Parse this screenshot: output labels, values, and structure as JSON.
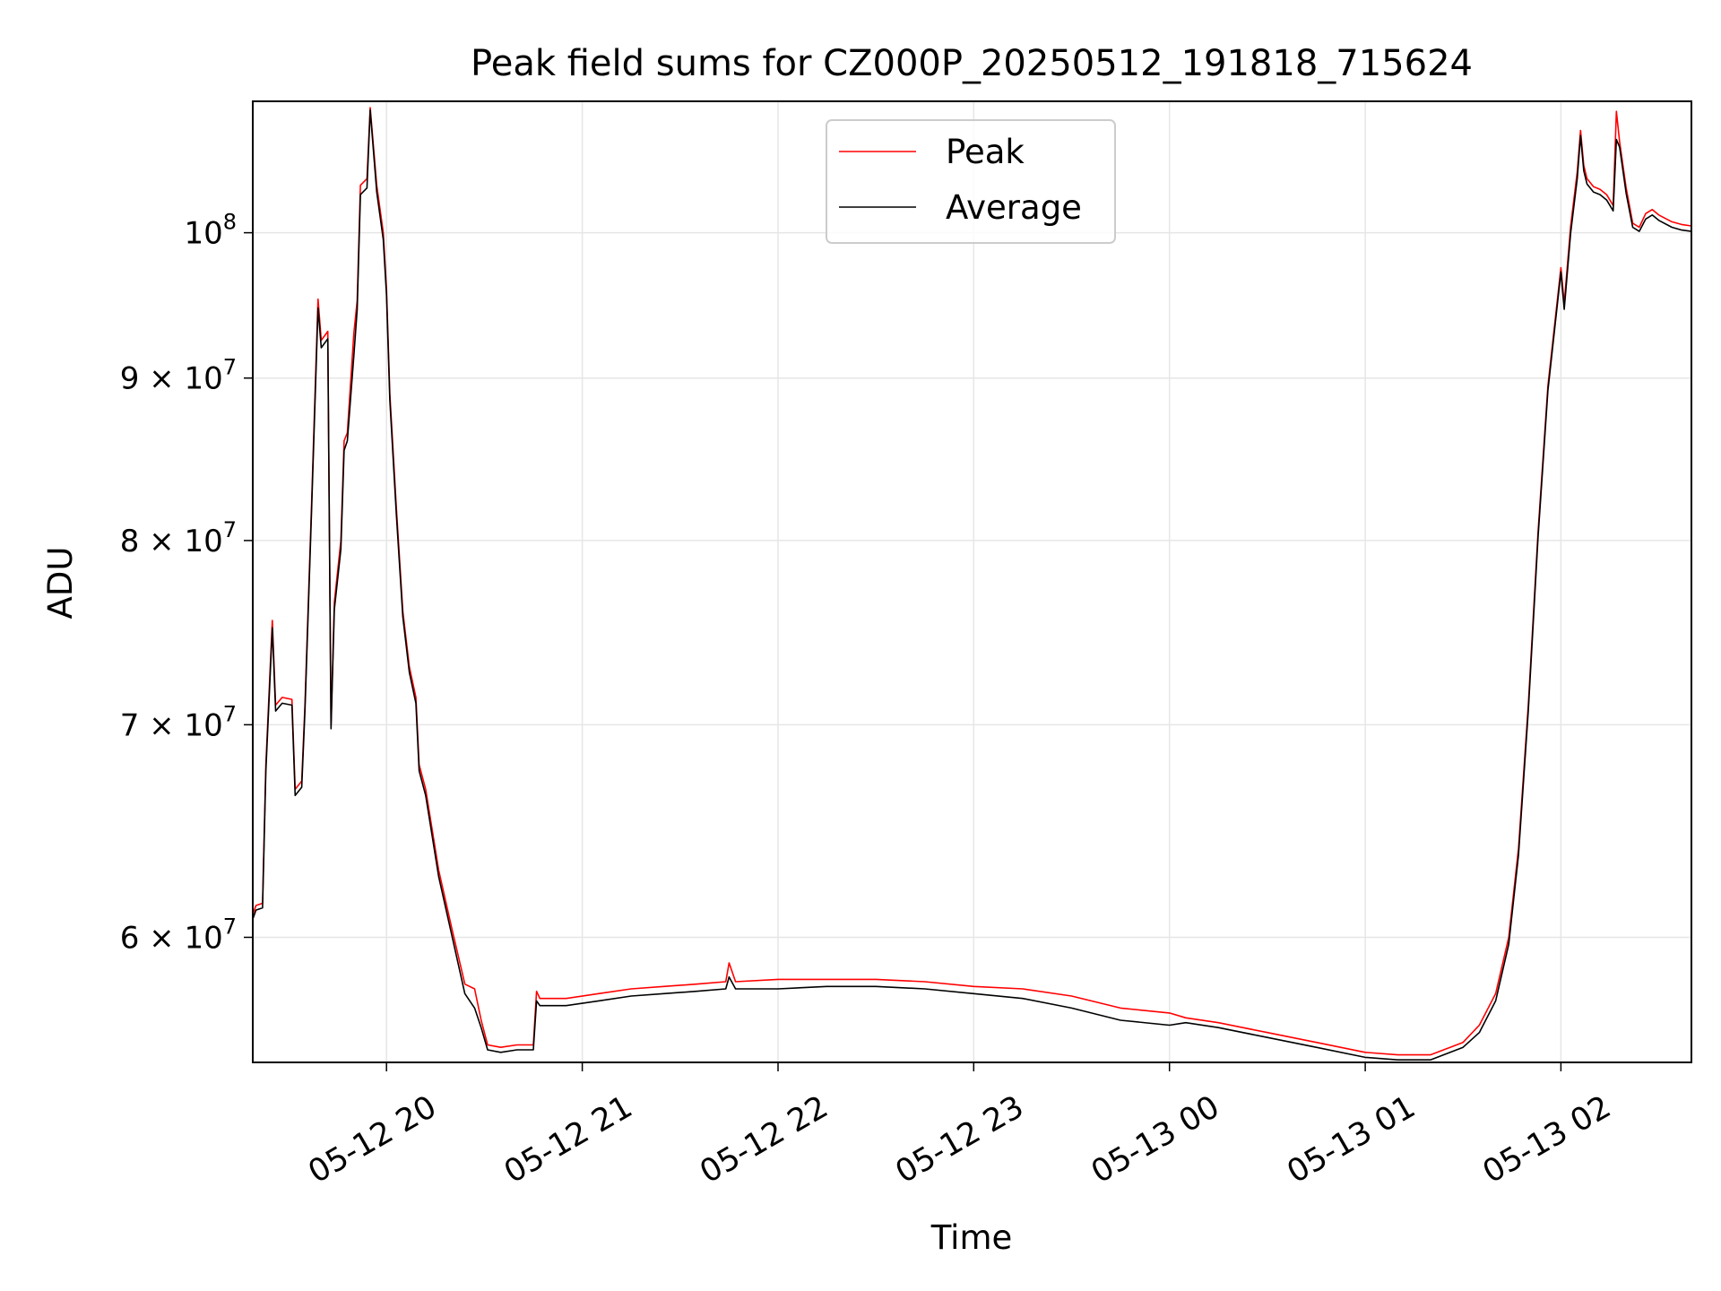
{
  "chart_data": {
    "type": "line",
    "title": "Peak field sums for CZ000P_20250512_191818_715624",
    "xlabel": "Time",
    "ylabel": "ADU",
    "x_start": "2025-05-12T19:19",
    "x_end": "2025-05-13T02:40",
    "x_range": [
      "05-12 19:19",
      "05-13 02:40"
    ],
    "ylim": [
      54800000,
      110000000
    ],
    "yscale": "log",
    "grid": true,
    "legend_position": "upper center",
    "x_ticks": [
      {
        "time": "2025-05-12T20:00",
        "label": "05-12 20"
      },
      {
        "time": "2025-05-12T21:00",
        "label": "05-12 21"
      },
      {
        "time": "2025-05-12T22:00",
        "label": "05-12 22"
      },
      {
        "time": "2025-05-12T23:00",
        "label": "05-12 23"
      },
      {
        "time": "2025-05-13T00:00",
        "label": "05-13 00"
      },
      {
        "time": "2025-05-13T01:00",
        "label": "05-13 01"
      },
      {
        "time": "2025-05-13T02:00",
        "label": "05-13 02"
      }
    ],
    "y_ticks": [
      {
        "value": 60000000,
        "base": "6",
        "exp": "7"
      },
      {
        "value": 70000000,
        "base": "7",
        "exp": "7"
      },
      {
        "value": 80000000,
        "base": "8",
        "exp": "7"
      },
      {
        "value": 90000000,
        "base": "9",
        "exp": "7"
      },
      {
        "value": 100000000,
        "base": "",
        "exp": "8"
      }
    ],
    "series": [
      {
        "name": "Peak",
        "color": "#ff0000",
        "points": [
          [
            "2025-05-12T19:19",
            61000000
          ],
          [
            "2025-05-12T19:20",
            61400000
          ],
          [
            "2025-05-12T19:22",
            61500000
          ],
          [
            "2025-05-12T19:23",
            68000000
          ],
          [
            "2025-05-12T19:25",
            75500000
          ],
          [
            "2025-05-12T19:26",
            71000000
          ],
          [
            "2025-05-12T19:28",
            71400000
          ],
          [
            "2025-05-12T19:31",
            71300000
          ],
          [
            "2025-05-12T19:32",
            66800000
          ],
          [
            "2025-05-12T19:34",
            67200000
          ],
          [
            "2025-05-12T19:35",
            71000000
          ],
          [
            "2025-05-12T19:37",
            82000000
          ],
          [
            "2025-05-12T19:39",
            95300000
          ],
          [
            "2025-05-12T19:40",
            92500000
          ],
          [
            "2025-05-12T19:42",
            93100000
          ],
          [
            "2025-05-12T19:43",
            70000000
          ],
          [
            "2025-05-12T19:44",
            76500000
          ],
          [
            "2025-05-12T19:46",
            80000000
          ],
          [
            "2025-05-12T19:47",
            86000000
          ],
          [
            "2025-05-12T19:48",
            86500000
          ],
          [
            "2025-05-12T19:50",
            93000000
          ],
          [
            "2025-05-12T19:51",
            95200000
          ],
          [
            "2025-05-12T19:52",
            103500000
          ],
          [
            "2025-05-12T19:54",
            104000000
          ],
          [
            "2025-05-12T19:55",
            109500000
          ],
          [
            "2025-05-12T19:57",
            103500000
          ],
          [
            "2025-05-12T19:59",
            100000000
          ],
          [
            "2025-05-12T20:00",
            96000000
          ],
          [
            "2025-05-12T20:01",
            89000000
          ],
          [
            "2025-05-12T20:03",
            82000000
          ],
          [
            "2025-05-12T20:05",
            76000000
          ],
          [
            "2025-05-12T20:07",
            73000000
          ],
          [
            "2025-05-12T20:09",
            71400000
          ],
          [
            "2025-05-12T20:10",
            68000000
          ],
          [
            "2025-05-12T20:12",
            66800000
          ],
          [
            "2025-05-12T20:16",
            63000000
          ],
          [
            "2025-05-12T20:20",
            60400000
          ],
          [
            "2025-05-12T20:24",
            58000000
          ],
          [
            "2025-05-12T20:27",
            57800000
          ],
          [
            "2025-05-12T20:29",
            56500000
          ],
          [
            "2025-05-12T20:31",
            55500000
          ],
          [
            "2025-05-12T20:35",
            55400000
          ],
          [
            "2025-05-12T20:40",
            55500000
          ],
          [
            "2025-05-12T20:45",
            55500000
          ],
          [
            "2025-05-12T20:46",
            57700000
          ],
          [
            "2025-05-12T20:47",
            57400000
          ],
          [
            "2025-05-12T20:55",
            57400000
          ],
          [
            "2025-05-12T21:05",
            57600000
          ],
          [
            "2025-05-12T21:15",
            57800000
          ],
          [
            "2025-05-12T21:25",
            57900000
          ],
          [
            "2025-05-12T21:35",
            58000000
          ],
          [
            "2025-05-12T21:44",
            58100000
          ],
          [
            "2025-05-12T21:45",
            58900000
          ],
          [
            "2025-05-12T21:47",
            58100000
          ],
          [
            "2025-05-12T22:00",
            58200000
          ],
          [
            "2025-05-12T22:15",
            58200000
          ],
          [
            "2025-05-12T22:30",
            58200000
          ],
          [
            "2025-05-12T22:45",
            58100000
          ],
          [
            "2025-05-12T23:00",
            57900000
          ],
          [
            "2025-05-12T23:15",
            57800000
          ],
          [
            "2025-05-12T23:30",
            57500000
          ],
          [
            "2025-05-12T23:45",
            57000000
          ],
          [
            "2025-05-13T00:00",
            56800000
          ],
          [
            "2025-05-13T00:05",
            56600000
          ],
          [
            "2025-05-13T00:15",
            56400000
          ],
          [
            "2025-05-13T00:30",
            56000000
          ],
          [
            "2025-05-13T00:45",
            55600000
          ],
          [
            "2025-05-13T01:00",
            55200000
          ],
          [
            "2025-05-13T01:10",
            55100000
          ],
          [
            "2025-05-13T01:20",
            55100000
          ],
          [
            "2025-05-13T01:30",
            55600000
          ],
          [
            "2025-05-13T01:35",
            56300000
          ],
          [
            "2025-05-13T01:40",
            57600000
          ],
          [
            "2025-05-13T01:44",
            60000000
          ],
          [
            "2025-05-13T01:47",
            64000000
          ],
          [
            "2025-05-13T01:50",
            71000000
          ],
          [
            "2025-05-13T01:53",
            80500000
          ],
          [
            "2025-05-13T01:56",
            89500000
          ],
          [
            "2025-05-13T02:00",
            97500000
          ],
          [
            "2025-05-13T02:01",
            95000000
          ],
          [
            "2025-05-13T02:03",
            100500000
          ],
          [
            "2025-05-13T02:05",
            104500000
          ],
          [
            "2025-05-13T02:06",
            107700000
          ],
          [
            "2025-05-13T02:07",
            105000000
          ],
          [
            "2025-05-13T02:08",
            104000000
          ],
          [
            "2025-05-13T02:10",
            103400000
          ],
          [
            "2025-05-13T02:12",
            103200000
          ],
          [
            "2025-05-13T02:14",
            102800000
          ],
          [
            "2025-05-13T02:16",
            102000000
          ],
          [
            "2025-05-13T02:17",
            109200000
          ],
          [
            "2025-05-13T02:18",
            106800000
          ],
          [
            "2025-05-13T02:20",
            103300000
          ],
          [
            "2025-05-13T02:22",
            100700000
          ],
          [
            "2025-05-13T02:24",
            100400000
          ],
          [
            "2025-05-13T02:26",
            101400000
          ],
          [
            "2025-05-13T02:28",
            101700000
          ],
          [
            "2025-05-13T02:30",
            101300000
          ],
          [
            "2025-05-13T02:34",
            100800000
          ],
          [
            "2025-05-13T02:37",
            100600000
          ],
          [
            "2025-05-13T02:40",
            100500000
          ]
        ]
      },
      {
        "name": "Average",
        "color": "#000000",
        "points": [
          [
            "2025-05-12T19:19",
            60800000
          ],
          [
            "2025-05-12T19:20",
            61200000
          ],
          [
            "2025-05-12T19:22",
            61300000
          ],
          [
            "2025-05-12T19:23",
            67700000
          ],
          [
            "2025-05-12T19:25",
            75100000
          ],
          [
            "2025-05-12T19:26",
            70700000
          ],
          [
            "2025-05-12T19:28",
            71100000
          ],
          [
            "2025-05-12T19:31",
            71000000
          ],
          [
            "2025-05-12T19:32",
            66500000
          ],
          [
            "2025-05-12T19:34",
            66900000
          ],
          [
            "2025-05-12T19:35",
            70700000
          ],
          [
            "2025-05-12T19:37",
            81600000
          ],
          [
            "2025-05-12T19:39",
            94700000
          ],
          [
            "2025-05-12T19:40",
            92000000
          ],
          [
            "2025-05-12T19:42",
            92600000
          ],
          [
            "2025-05-12T19:43",
            69800000
          ],
          [
            "2025-05-12T19:44",
            76100000
          ],
          [
            "2025-05-12T19:46",
            79500000
          ],
          [
            "2025-05-12T19:47",
            85400000
          ],
          [
            "2025-05-12T19:48",
            86000000
          ],
          [
            "2025-05-12T19:50",
            91500000
          ],
          [
            "2025-05-12T19:51",
            94600000
          ],
          [
            "2025-05-12T19:52",
            102800000
          ],
          [
            "2025-05-12T19:54",
            103300000
          ],
          [
            "2025-05-12T19:55",
            109300000
          ],
          [
            "2025-05-12T19:57",
            103000000
          ],
          [
            "2025-05-12T19:59",
            99500000
          ],
          [
            "2025-05-12T20:00",
            95600000
          ],
          [
            "2025-05-12T20:01",
            88600000
          ],
          [
            "2025-05-12T20:03",
            81600000
          ],
          [
            "2025-05-12T20:05",
            75700000
          ],
          [
            "2025-05-12T20:07",
            72700000
          ],
          [
            "2025-05-12T20:09",
            71100000
          ],
          [
            "2025-05-12T20:10",
            67700000
          ],
          [
            "2025-05-12T20:12",
            66500000
          ],
          [
            "2025-05-12T20:16",
            62700000
          ],
          [
            "2025-05-12T20:20",
            60100000
          ],
          [
            "2025-05-12T20:24",
            57600000
          ],
          [
            "2025-05-12T20:27",
            57000000
          ],
          [
            "2025-05-12T20:29",
            56200000
          ],
          [
            "2025-05-12T20:31",
            55300000
          ],
          [
            "2025-05-12T20:35",
            55200000
          ],
          [
            "2025-05-12T20:40",
            55300000
          ],
          [
            "2025-05-12T20:45",
            55300000
          ],
          [
            "2025-05-12T20:46",
            57300000
          ],
          [
            "2025-05-12T20:47",
            57100000
          ],
          [
            "2025-05-12T20:55",
            57100000
          ],
          [
            "2025-05-12T21:05",
            57300000
          ],
          [
            "2025-05-12T21:15",
            57500000
          ],
          [
            "2025-05-12T21:25",
            57600000
          ],
          [
            "2025-05-12T21:35",
            57700000
          ],
          [
            "2025-05-12T21:44",
            57800000
          ],
          [
            "2025-05-12T21:45",
            58300000
          ],
          [
            "2025-05-12T21:47",
            57800000
          ],
          [
            "2025-05-12T22:00",
            57800000
          ],
          [
            "2025-05-12T22:15",
            57900000
          ],
          [
            "2025-05-12T22:30",
            57900000
          ],
          [
            "2025-05-12T22:45",
            57800000
          ],
          [
            "2025-05-12T23:00",
            57600000
          ],
          [
            "2025-05-12T23:15",
            57400000
          ],
          [
            "2025-05-12T23:30",
            57000000
          ],
          [
            "2025-05-12T23:45",
            56500000
          ],
          [
            "2025-05-13T00:00",
            56300000
          ],
          [
            "2025-05-13T00:05",
            56400000
          ],
          [
            "2025-05-13T00:15",
            56200000
          ],
          [
            "2025-05-13T00:30",
            55800000
          ],
          [
            "2025-05-13T00:45",
            55400000
          ],
          [
            "2025-05-13T01:00",
            55000000
          ],
          [
            "2025-05-13T01:10",
            54900000
          ],
          [
            "2025-05-13T01:20",
            54900000
          ],
          [
            "2025-05-13T01:30",
            55400000
          ],
          [
            "2025-05-13T01:35",
            56000000
          ],
          [
            "2025-05-13T01:40",
            57300000
          ],
          [
            "2025-05-13T01:44",
            59700000
          ],
          [
            "2025-05-13T01:47",
            63700000
          ],
          [
            "2025-05-13T01:50",
            70700000
          ],
          [
            "2025-05-13T01:53",
            80200000
          ],
          [
            "2025-05-13T01:56",
            89200000
          ],
          [
            "2025-05-13T02:00",
            97200000
          ],
          [
            "2025-05-13T02:01",
            94600000
          ],
          [
            "2025-05-13T02:03",
            100000000
          ],
          [
            "2025-05-13T02:05",
            104000000
          ],
          [
            "2025-05-13T02:06",
            107300000
          ],
          [
            "2025-05-13T02:07",
            104600000
          ],
          [
            "2025-05-13T02:08",
            103600000
          ],
          [
            "2025-05-13T02:10",
            103000000
          ],
          [
            "2025-05-13T02:12",
            102800000
          ],
          [
            "2025-05-13T02:14",
            102400000
          ],
          [
            "2025-05-13T02:16",
            101600000
          ],
          [
            "2025-05-13T02:17",
            107000000
          ],
          [
            "2025-05-13T02:18",
            106400000
          ],
          [
            "2025-05-13T02:20",
            102900000
          ],
          [
            "2025-05-13T02:22",
            100400000
          ],
          [
            "2025-05-13T02:24",
            100100000
          ],
          [
            "2025-05-13T02:26",
            101000000
          ],
          [
            "2025-05-13T02:28",
            101300000
          ],
          [
            "2025-05-13T02:30",
            100900000
          ],
          [
            "2025-05-13T02:34",
            100400000
          ],
          [
            "2025-05-13T02:37",
            100200000
          ],
          [
            "2025-05-13T02:40",
            100100000
          ]
        ]
      }
    ]
  }
}
